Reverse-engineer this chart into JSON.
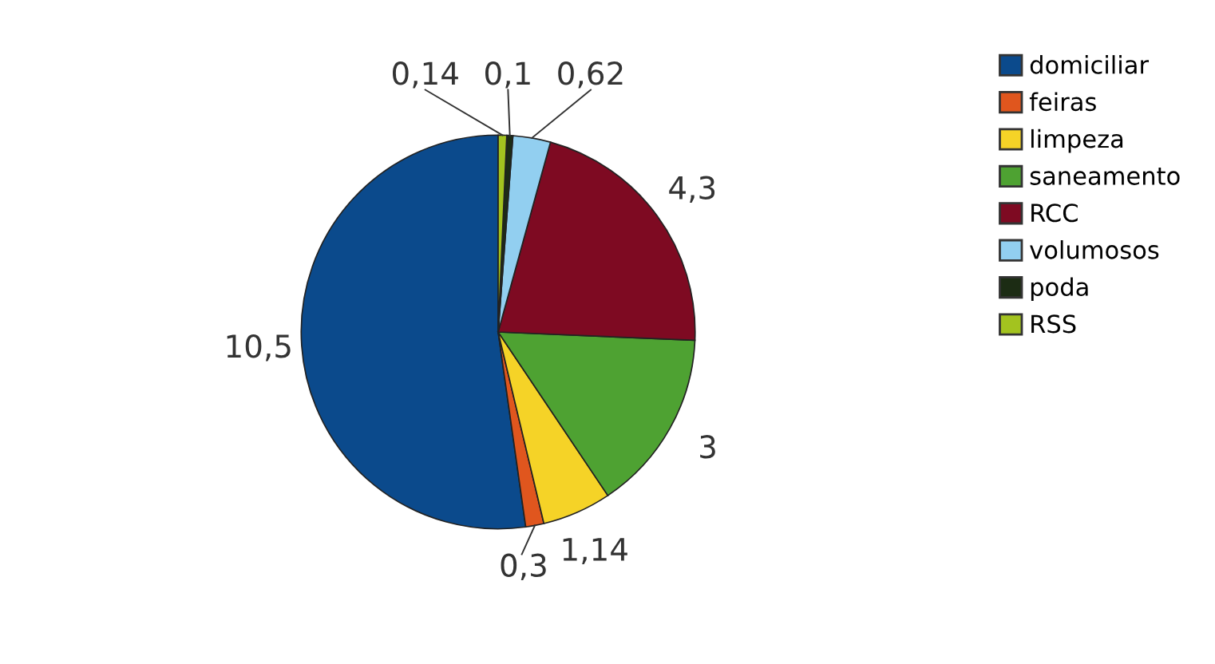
{
  "chart_data": {
    "type": "pie",
    "categories": [
      "domiciliar",
      "feiras",
      "limpeza",
      "saneamento",
      "RCC",
      "volumosos",
      "poda",
      "RSS"
    ],
    "values": [
      10.5,
      0.3,
      1.14,
      3,
      4.3,
      0.62,
      0.1,
      0.14
    ],
    "value_labels": [
      "10,5",
      "0,3",
      "1,14",
      "3",
      "4,3",
      "0,62",
      "0,1",
      "0,14"
    ],
    "colors": [
      "#0b4a8c",
      "#e0561e",
      "#f5d327",
      "#4ea232",
      "#7e0a22",
      "#92cff0",
      "#1c2c14",
      "#a3c31f"
    ],
    "legend": "top right"
  }
}
